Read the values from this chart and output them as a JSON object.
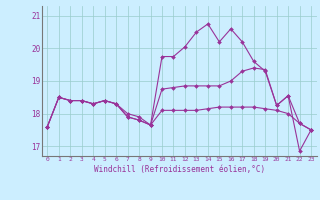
{
  "xlabel": "Windchill (Refroidissement éolien,°C)",
  "background_color": "#cceeff",
  "line_color": "#993399",
  "grid_color": "#99cccc",
  "hours": [
    0,
    1,
    2,
    3,
    4,
    5,
    6,
    7,
    8,
    9,
    10,
    11,
    12,
    13,
    14,
    15,
    16,
    17,
    18,
    19,
    20,
    21,
    22,
    23
  ],
  "series": {
    "s1": [
      17.6,
      18.5,
      18.4,
      18.4,
      18.3,
      18.4,
      18.3,
      17.9,
      17.8,
      17.65,
      19.75,
      19.75,
      20.05,
      20.5,
      20.75,
      20.2,
      20.6,
      20.2,
      19.6,
      19.3,
      18.25,
      18.55,
      16.85,
      17.5
    ],
    "s2": [
      17.6,
      18.5,
      18.4,
      18.4,
      18.3,
      18.4,
      18.3,
      17.9,
      17.8,
      17.65,
      18.75,
      18.8,
      18.85,
      18.85,
      18.85,
      18.85,
      19.0,
      19.3,
      19.4,
      19.35,
      18.25,
      18.55,
      17.7,
      17.5
    ],
    "s3": [
      17.6,
      18.5,
      18.4,
      18.4,
      18.3,
      18.4,
      18.3,
      18.0,
      17.9,
      17.65,
      18.1,
      18.1,
      18.1,
      18.1,
      18.15,
      18.2,
      18.2,
      18.2,
      18.2,
      18.15,
      18.1,
      18.0,
      17.7,
      17.5
    ]
  },
  "ylim": [
    16.7,
    21.3
  ],
  "yticks": [
    17,
    18,
    19,
    20,
    21
  ],
  "xticks": [
    0,
    1,
    2,
    3,
    4,
    5,
    6,
    7,
    8,
    9,
    10,
    11,
    12,
    13,
    14,
    15,
    16,
    17,
    18,
    19,
    20,
    21,
    22,
    23
  ]
}
